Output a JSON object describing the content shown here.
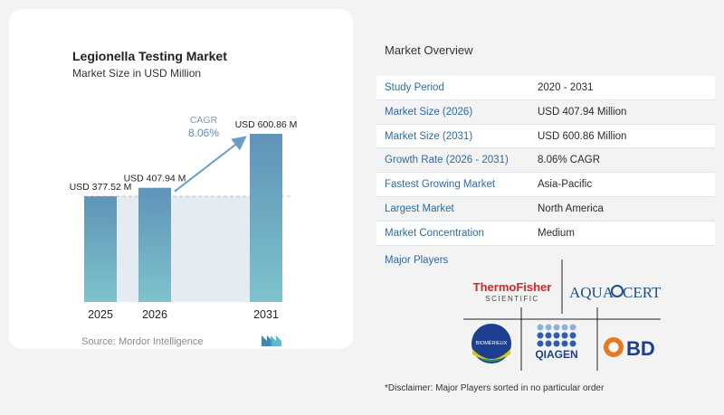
{
  "chart": {
    "title": "Legionella Testing Market",
    "subtitle": "Market Size in USD Million",
    "source": "Source:  Mordor Intelligence",
    "cagr_label": "CAGR",
    "cagr_value": "8.06%"
  },
  "chart_data": {
    "type": "bar",
    "categories": [
      "2025",
      "2026",
      "2031"
    ],
    "values": [
      377.52,
      407.94,
      600.86
    ],
    "value_labels": [
      "USD 377.52 M",
      "USD 407.94 M",
      "USD 600.86 M"
    ],
    "title": "Legionella Testing Market",
    "subtitle": "Market Size in USD Million",
    "xlabel": "",
    "ylabel": "",
    "annotations": [
      "CAGR",
      "8.06%"
    ],
    "grid": false,
    "colors": {
      "bar_top": "#5f93b8",
      "bar_bottom": "#7ec3cc",
      "arrow": "#6a9ec2",
      "shade": "#e4ebf2"
    }
  },
  "overview": {
    "title": "Market Overview",
    "rows": [
      {
        "label": "Study Period",
        "value": "2020 - 2031"
      },
      {
        "label": "Market Size (2026)",
        "value": "USD 407.94 Million"
      },
      {
        "label": "Market Size (2031)",
        "value": "USD 600.86 Million"
      },
      {
        "label": "Growth Rate (2026 - 2031)",
        "value": "8.06% CAGR"
      },
      {
        "label": "Fastest Growing Market",
        "value": "Asia-Pacific"
      },
      {
        "label": "Largest Market",
        "value": "North America"
      },
      {
        "label": "Market Concentration",
        "value": "Medium"
      }
    ]
  },
  "players": {
    "title": "Major Players",
    "logos": [
      "ThermoFisher",
      "SCIENTIFIC",
      "AQUA",
      "CERT",
      "BIOMÉRIEUX",
      "QIAGEN",
      "BD"
    ],
    "disclaimer": "*Disclaimer: Major Players sorted in no particular order"
  }
}
